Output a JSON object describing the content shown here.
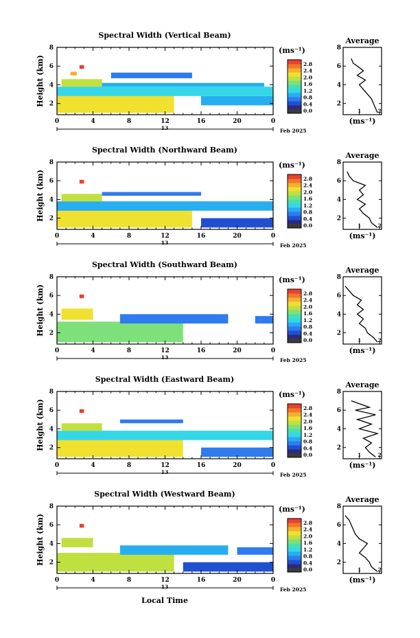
{
  "colors": {
    "colormap": [
      "#2a2a80",
      "#2050d0",
      "#2f7bf0",
      "#26aef0",
      "#35d6e8",
      "#46e0b0",
      "#7ee07a",
      "#c0e040",
      "#f0e030",
      "#f5b030",
      "#f07828",
      "#e84030"
    ],
    "bad_color": "#3a3a3a"
  },
  "figure": {
    "xlabel": "Local Time",
    "date_label": "Feb 2025",
    "day_label": "13",
    "cbar_unit": "(ms⁻¹)",
    "avg_unit": "(ms⁻¹)",
    "avg_title": "Average"
  },
  "chart_data": [
    {
      "type": "heatmap",
      "title": "Spectral Width (Vertical Beam)",
      "ylabel": "Height (km)",
      "x_ticks": [
        "0",
        "4",
        "8",
        "12",
        "16",
        "20",
        "0"
      ],
      "y_ticks": [
        "2",
        "4",
        "6",
        "8"
      ],
      "xlim": [
        0,
        24
      ],
      "ylim": [
        0.8,
        8
      ],
      "colorbar": {
        "ticks": [
          "2.8",
          "2.4",
          "2.0",
          "1.6",
          "1.2",
          "0.8",
          "0.4",
          "0.0"
        ],
        "range": [
          0,
          2.8
        ]
      },
      "average": {
        "title": "Average",
        "x_ticks": [
          "1",
          "2"
        ],
        "y_ticks": [
          "2",
          "4",
          "6",
          "8"
        ],
        "xlim": [
          0.2,
          2.1
        ],
        "profile": [
          [
            1.9,
            1.0
          ],
          [
            1.8,
            1.5
          ],
          [
            1.7,
            2.0
          ],
          [
            1.6,
            2.5
          ],
          [
            1.4,
            3.0
          ],
          [
            1.2,
            3.5
          ],
          [
            1.0,
            4.0
          ],
          [
            1.3,
            4.5
          ],
          [
            0.9,
            5.0
          ],
          [
            1.2,
            5.5
          ],
          [
            0.9,
            6.0
          ],
          [
            0.7,
            6.3
          ],
          [
            0.6,
            6.8
          ]
        ]
      },
      "regions": [
        {
          "t0": 0,
          "t1": 13,
          "h0": 1.0,
          "h1": 3.0,
          "v": 2.0
        },
        {
          "t0": 0,
          "t1": 24,
          "h0": 2.8,
          "h1": 3.8,
          "v": 1.0
        },
        {
          "t0": 0.5,
          "t1": 5,
          "h0": 3.8,
          "h1": 4.6,
          "v": 1.8
        },
        {
          "t0": 5,
          "t1": 23,
          "h0": 3.8,
          "h1": 4.2,
          "v": 0.8
        },
        {
          "t0": 1.5,
          "t1": 2.2,
          "h0": 5.0,
          "h1": 5.4,
          "v": 2.3
        },
        {
          "t0": 2.5,
          "t1": 3.0,
          "h0": 5.7,
          "h1": 6.1,
          "v": 2.8
        },
        {
          "t0": 6,
          "t1": 15,
          "h0": 4.7,
          "h1": 5.3,
          "v": 0.5
        },
        {
          "t0": 16,
          "t1": 24,
          "h0": 1.8,
          "h1": 2.8,
          "v": 0.7
        }
      ]
    },
    {
      "type": "heatmap",
      "title": "Spectral Width (Northward Beam)",
      "ylabel": "Height (km)",
      "x_ticks": [
        "0",
        "4",
        "8",
        "12",
        "16",
        "20",
        "0"
      ],
      "y_ticks": [
        "2",
        "4",
        "6",
        "8"
      ],
      "xlim": [
        0,
        24
      ],
      "ylim": [
        0.8,
        8
      ],
      "colorbar": {
        "ticks": [
          "2.8",
          "2.4",
          "2.0",
          "1.6",
          "1.2",
          "0.8",
          "0.4",
          "0.0"
        ],
        "range": [
          0,
          2.8
        ]
      },
      "average": {
        "title": "Average",
        "x_ticks": [
          "1",
          "2"
        ],
        "y_ticks": [
          "2",
          "4",
          "6",
          "8"
        ],
        "xlim": [
          0.2,
          2.1
        ],
        "profile": [
          [
            1.9,
            1.0
          ],
          [
            1.6,
            1.5
          ],
          [
            1.5,
            2.0
          ],
          [
            1.2,
            2.5
          ],
          [
            1.0,
            3.0
          ],
          [
            1.3,
            3.5
          ],
          [
            0.9,
            4.0
          ],
          [
            1.2,
            4.5
          ],
          [
            1.0,
            5.0
          ],
          [
            1.3,
            5.5
          ],
          [
            0.7,
            6.0
          ],
          [
            0.5,
            6.5
          ],
          [
            0.4,
            7.0
          ]
        ]
      },
      "regions": [
        {
          "t0": 0,
          "t1": 15,
          "h0": 1.0,
          "h1": 3.0,
          "v": 1.9
        },
        {
          "t0": 0,
          "t1": 24,
          "h0": 2.8,
          "h1": 3.8,
          "v": 0.9
        },
        {
          "t0": 0.5,
          "t1": 5,
          "h0": 3.8,
          "h1": 4.6,
          "v": 1.8
        },
        {
          "t0": 5,
          "t1": 16,
          "h0": 4.4,
          "h1": 4.8,
          "v": 0.6
        },
        {
          "t0": 2.5,
          "t1": 3.0,
          "h0": 5.7,
          "h1": 6.1,
          "v": 2.8
        },
        {
          "t0": 16,
          "t1": 24,
          "h0": 1.0,
          "h1": 2.0,
          "v": 0.3
        }
      ]
    },
    {
      "type": "heatmap",
      "title": "Spectral Width (Southward Beam)",
      "ylabel": "Height (km)",
      "x_ticks": [
        "0",
        "4",
        "8",
        "12",
        "16",
        "20",
        "0"
      ],
      "y_ticks": [
        "2",
        "4",
        "6",
        "8"
      ],
      "xlim": [
        0,
        24
      ],
      "ylim": [
        0.8,
        8
      ],
      "colorbar": {
        "ticks": [
          "2.8",
          "2.4",
          "2.0",
          "1.6",
          "1.2",
          "0.8",
          "0.4",
          "0.0"
        ],
        "range": [
          0,
          2.8
        ]
      },
      "average": {
        "title": "Average",
        "x_ticks": [
          "1",
          "2"
        ],
        "y_ticks": [
          "2",
          "4",
          "6",
          "8"
        ],
        "xlim": [
          0.2,
          2.1
        ],
        "profile": [
          [
            1.9,
            1.0
          ],
          [
            1.7,
            1.5
          ],
          [
            1.4,
            2.0
          ],
          [
            1.3,
            2.5
          ],
          [
            1.0,
            3.0
          ],
          [
            1.2,
            3.5
          ],
          [
            0.9,
            4.0
          ],
          [
            1.2,
            4.5
          ],
          [
            0.9,
            5.0
          ],
          [
            1.1,
            5.5
          ],
          [
            0.7,
            6.0
          ],
          [
            0.5,
            6.5
          ],
          [
            0.3,
            7.0
          ]
        ]
      },
      "regions": [
        {
          "t0": 0,
          "t1": 14,
          "h0": 1.0,
          "h1": 3.2,
          "v": 1.6
        },
        {
          "t0": 7,
          "t1": 19,
          "h0": 3.0,
          "h1": 4.0,
          "v": 0.6
        },
        {
          "t0": 0.5,
          "t1": 4,
          "h0": 3.4,
          "h1": 4.6,
          "v": 1.9
        },
        {
          "t0": 22,
          "t1": 24,
          "h0": 3.0,
          "h1": 3.8,
          "v": 0.5
        },
        {
          "t0": 2.5,
          "t1": 3.0,
          "h0": 5.7,
          "h1": 6.1,
          "v": 2.8
        }
      ]
    },
    {
      "type": "heatmap",
      "title": "Spectral Width (Eastward Beam)",
      "ylabel": "Height (km)",
      "x_ticks": [
        "0",
        "4",
        "8",
        "12",
        "16",
        "20",
        "0"
      ],
      "y_ticks": [
        "2",
        "4",
        "6",
        "8"
      ],
      "xlim": [
        0,
        24
      ],
      "ylim": [
        0.8,
        8
      ],
      "colorbar": {
        "ticks": [
          "2.8",
          "2.4",
          "2.0",
          "1.6",
          "1.2",
          "0.8",
          "0.4",
          "0.0"
        ],
        "range": [
          0,
          2.8
        ]
      },
      "average": {
        "title": "Average",
        "x_ticks": [
          "1",
          "2"
        ],
        "y_ticks": [
          "2",
          "4",
          "6",
          "8"
        ],
        "xlim": [
          0.2,
          2.1
        ],
        "profile": [
          [
            1.8,
            1.0
          ],
          [
            1.5,
            1.5
          ],
          [
            1.3,
            2.0
          ],
          [
            1.6,
            2.5
          ],
          [
            1.2,
            3.0
          ],
          [
            1.9,
            3.5
          ],
          [
            1.0,
            4.0
          ],
          [
            1.6,
            4.5
          ],
          [
            0.9,
            5.0
          ],
          [
            1.8,
            5.5
          ],
          [
            0.8,
            6.0
          ],
          [
            1.5,
            6.3
          ],
          [
            0.6,
            7.0
          ]
        ]
      },
      "regions": [
        {
          "t0": 0,
          "t1": 14,
          "h0": 1.0,
          "h1": 3.0,
          "v": 1.9
        },
        {
          "t0": 0,
          "t1": 24,
          "h0": 2.8,
          "h1": 3.8,
          "v": 1.0
        },
        {
          "t0": 0.5,
          "t1": 5,
          "h0": 3.8,
          "h1": 4.6,
          "v": 1.8
        },
        {
          "t0": 7,
          "t1": 14,
          "h0": 4.6,
          "h1": 5.0,
          "v": 0.5
        },
        {
          "t0": 2.5,
          "t1": 3.0,
          "h0": 5.7,
          "h1": 6.1,
          "v": 2.8
        },
        {
          "t0": 16,
          "t1": 24,
          "h0": 1.0,
          "h1": 2.0,
          "v": 0.6
        }
      ]
    },
    {
      "type": "heatmap",
      "title": "Spectral Width (Westward Beam)",
      "ylabel": "Height (km)",
      "x_ticks": [
        "0",
        "4",
        "8",
        "12",
        "16",
        "20",
        "0"
      ],
      "y_ticks": [
        "2",
        "4",
        "6",
        "8"
      ],
      "xlim": [
        0,
        24
      ],
      "ylim": [
        0.8,
        8
      ],
      "colorbar": {
        "ticks": [
          "2.8",
          "2.4",
          "2.0",
          "1.6",
          "1.2",
          "0.8",
          "0.4",
          "0.0"
        ],
        "range": [
          0,
          2.8
        ]
      },
      "average": {
        "title": "Average",
        "x_ticks": [
          "1",
          "2"
        ],
        "y_ticks": [
          "2",
          "4",
          "6",
          "8"
        ],
        "xlim": [
          0.2,
          2.1
        ],
        "profile": [
          [
            1.9,
            1.0
          ],
          [
            1.6,
            1.5
          ],
          [
            1.5,
            2.0
          ],
          [
            1.3,
            2.5
          ],
          [
            1.0,
            3.0
          ],
          [
            1.2,
            3.5
          ],
          [
            1.4,
            4.0
          ],
          [
            1.0,
            4.5
          ],
          [
            0.8,
            5.0
          ],
          [
            0.7,
            5.5
          ],
          [
            0.6,
            6.0
          ],
          [
            0.5,
            6.5
          ],
          [
            0.3,
            7.0
          ]
        ]
      },
      "regions": [
        {
          "t0": 0,
          "t1": 13,
          "h0": 1.0,
          "h1": 3.0,
          "v": 1.8
        },
        {
          "t0": 7,
          "t1": 19,
          "h0": 2.8,
          "h1": 3.8,
          "v": 0.7
        },
        {
          "t0": 0.5,
          "t1": 4,
          "h0": 3.6,
          "h1": 4.6,
          "v": 1.8
        },
        {
          "t0": 20,
          "t1": 24,
          "h0": 2.8,
          "h1": 3.6,
          "v": 0.6
        },
        {
          "t0": 2.5,
          "t1": 3.0,
          "h0": 5.7,
          "h1": 6.1,
          "v": 2.8
        },
        {
          "t0": 14,
          "t1": 24,
          "h0": 1.0,
          "h1": 2.0,
          "v": 0.3
        }
      ]
    }
  ]
}
